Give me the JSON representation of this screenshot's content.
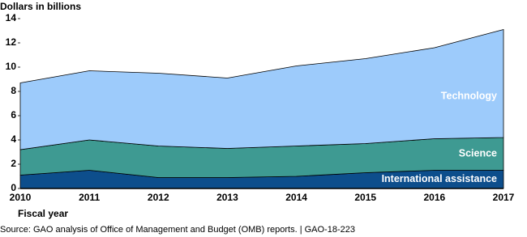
{
  "chart_data": {
    "type": "stacked_area",
    "y_axis_label": "Dollars in billions",
    "x_axis_label": "Fiscal year",
    "source": "Source: GAO analysis of Office of Management and Budget (OMB) reports.  |  GAO-18-223",
    "categories": [
      "2010",
      "2011",
      "2012",
      "2013",
      "2014",
      "2015",
      "2016",
      "2017"
    ],
    "series": [
      {
        "name": "International assistance",
        "color": "#0d4e8c",
        "values": [
          1.1,
          1.5,
          0.9,
          0.9,
          1.0,
          1.3,
          1.5,
          1.5
        ]
      },
      {
        "name": "Science",
        "color": "#3e9a92",
        "values": [
          2.1,
          2.5,
          2.6,
          2.4,
          2.5,
          2.4,
          2.6,
          2.7
        ]
      },
      {
        "name": "Technology",
        "color": "#9dcbfb",
        "values": [
          5.5,
          5.7,
          6.0,
          5.8,
          6.6,
          7.0,
          7.5,
          8.9
        ]
      }
    ],
    "ylim": [
      0,
      14
    ],
    "yticks": [
      0,
      2,
      4,
      6,
      8,
      10,
      12,
      14
    ]
  }
}
